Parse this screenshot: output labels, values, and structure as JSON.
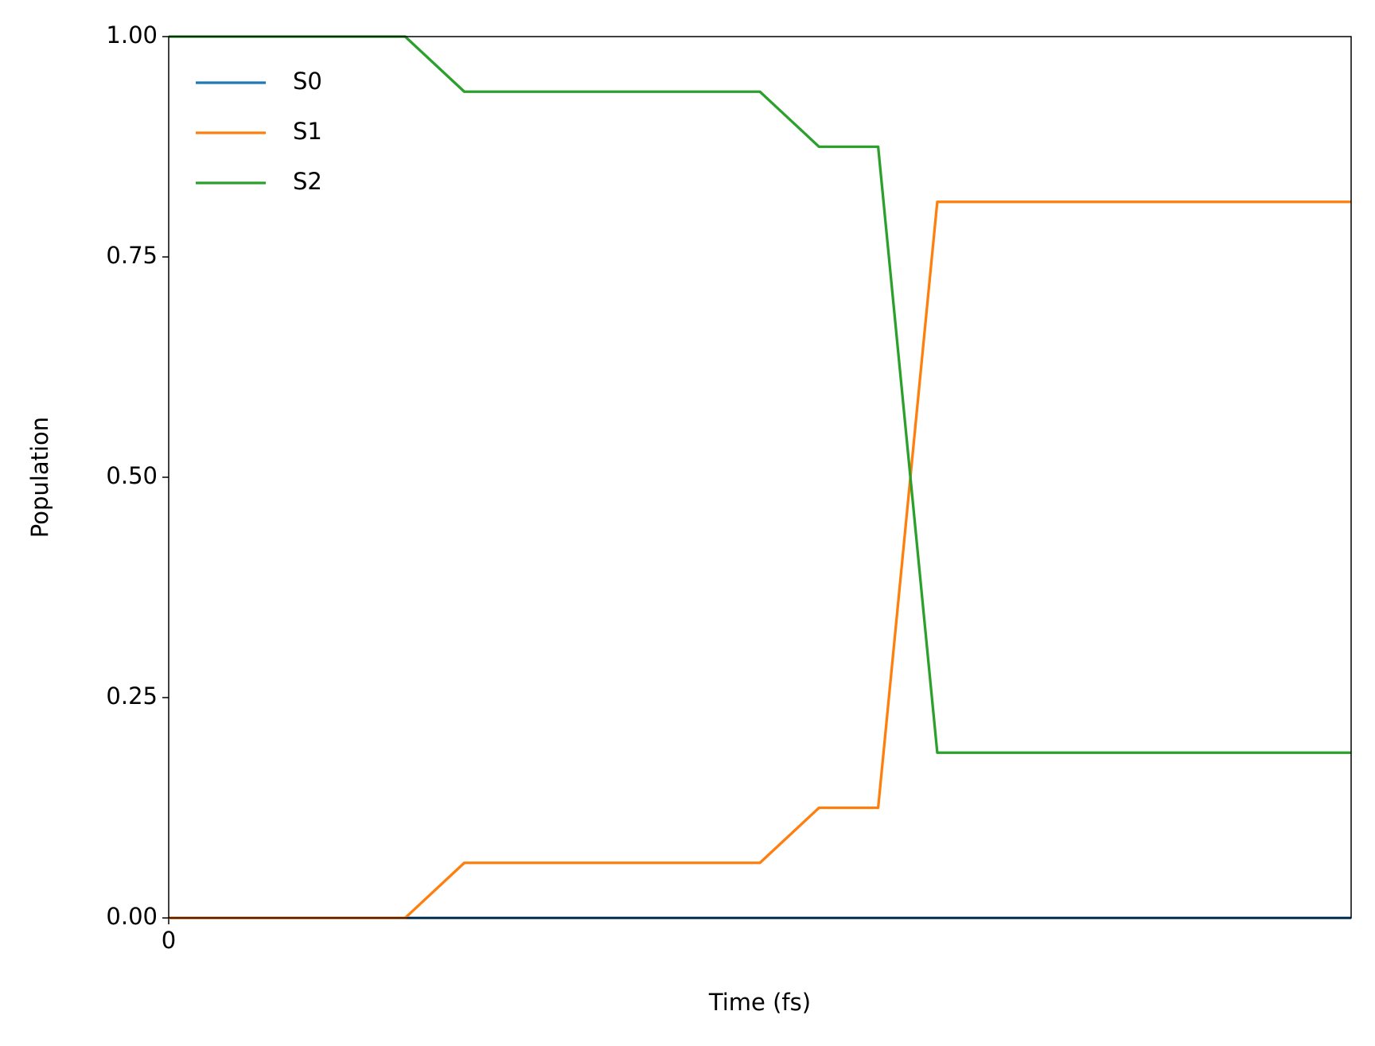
{
  "chart_data": {
    "type": "line",
    "x_label": "Time (fs)",
    "y_label": "Population",
    "x": [
      0,
      1,
      2,
      3,
      4,
      5,
      6,
      7,
      8,
      9,
      10,
      11,
      12,
      13,
      14,
      15,
      16,
      17,
      18,
      19,
      20
    ],
    "series": [
      {
        "name": "S0",
        "color": "#1f77b4",
        "values": [
          0,
          0,
          0,
          0,
          0,
          0,
          0,
          0,
          0,
          0,
          0,
          0,
          0,
          0,
          0,
          0,
          0,
          0,
          0,
          0,
          0
        ]
      },
      {
        "name": "S1",
        "color": "#ff7f0e",
        "values": [
          0,
          0,
          0,
          0,
          0,
          0.0625,
          0.0625,
          0.0625,
          0.0625,
          0.0625,
          0.0625,
          0.125,
          0.125,
          0.8125,
          0.8125,
          0.8125,
          0.8125,
          0.8125,
          0.8125,
          0.8125,
          0.8125
        ]
      },
      {
        "name": "S2",
        "color": "#2ca02c",
        "values": [
          1,
          1,
          1,
          1,
          1,
          0.9375,
          0.9375,
          0.9375,
          0.9375,
          0.9375,
          0.9375,
          0.875,
          0.875,
          0.1875,
          0.1875,
          0.1875,
          0.1875,
          0.1875,
          0.1875,
          0.1875,
          0.1875
        ]
      }
    ],
    "xlim": [
      0,
      20
    ],
    "xticks": [
      0
    ],
    "ylim": [
      0,
      1
    ],
    "yticks": [
      {
        "value": 0,
        "label": "0.00"
      },
      0.25,
      {
        "value": 0.5,
        "label": "0.50"
      },
      0.75,
      {
        "value": 1,
        "label": "1.00"
      }
    ],
    "legend": "upper left"
  }
}
